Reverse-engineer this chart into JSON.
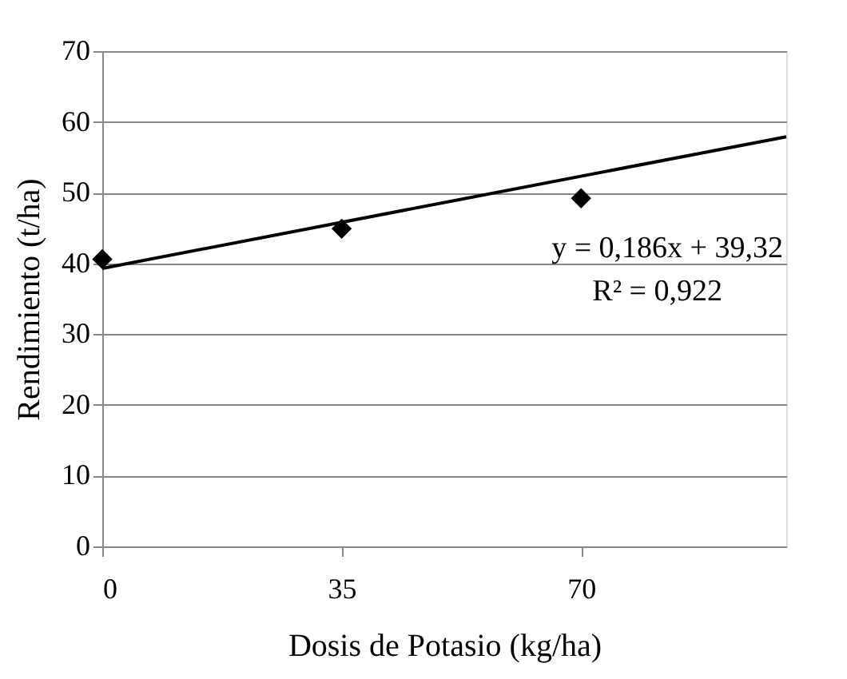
{
  "chart_data": {
    "type": "scatter",
    "xlabel": "Dosis de Potasio (kg/ha)",
    "ylabel": "Rendimiento (t/ha)",
    "xlim": [
      0,
      100
    ],
    "xticks": [
      0,
      35,
      70
    ],
    "ylim": [
      0,
      70
    ],
    "yticks": [
      0,
      10,
      20,
      30,
      40,
      50,
      60,
      70
    ],
    "grid": "y",
    "series": [
      {
        "marker": "diamond",
        "color": "#000000",
        "x": [
          0,
          35,
          70
        ],
        "values": [
          40.6,
          44.9,
          49.2
        ]
      },
      {
        "type": "line",
        "marker": "none",
        "line_style": "solid",
        "color": "#000000",
        "x": [
          0,
          100
        ],
        "values": [
          39.3,
          57.9
        ]
      }
    ],
    "annotations": [
      "y = 0,186x + 39,32",
      "R² = 0,922"
    ]
  }
}
